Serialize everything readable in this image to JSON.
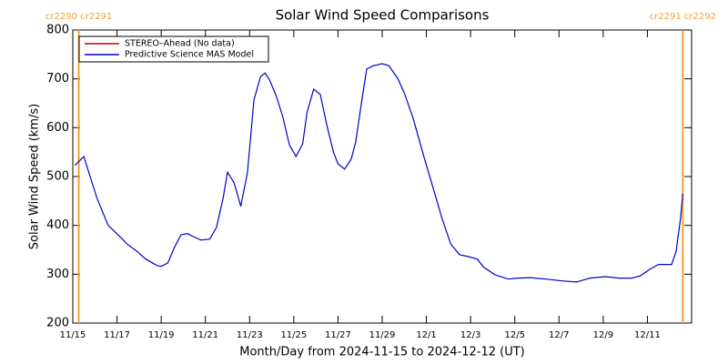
{
  "chart_data": {
    "type": "line",
    "title": "Solar Wind Speed Comparisons",
    "xlabel": "Month/Day from 2024-11-15 to 2024-12-12 (UT)",
    "ylabel": "Solar Wind Speed (km/s)",
    "xlim": [
      0,
      28
    ],
    "ylim": [
      200,
      800
    ],
    "yticks": [
      200,
      300,
      400,
      500,
      600,
      700,
      800
    ],
    "xticks": [
      {
        "value": 0,
        "label": "11/15"
      },
      {
        "value": 2,
        "label": "11/17"
      },
      {
        "value": 4,
        "label": "11/19"
      },
      {
        "value": 6,
        "label": "11/21"
      },
      {
        "value": 8,
        "label": "11/23"
      },
      {
        "value": 10,
        "label": "11/25"
      },
      {
        "value": 12,
        "label": "11/27"
      },
      {
        "value": 14,
        "label": "11/29"
      },
      {
        "value": 16,
        "label": "12/1"
      },
      {
        "value": 18,
        "label": "12/3"
      },
      {
        "value": 20,
        "label": "12/5"
      },
      {
        "value": 22,
        "label": "12/7"
      },
      {
        "value": 24,
        "label": "12/9"
      },
      {
        "value": 26,
        "label": "12/11"
      }
    ],
    "legend": "upper left",
    "annotations": [
      {
        "text": "cr2290 cr2291",
        "x": 0.27,
        "color": "#f5a030"
      },
      {
        "text": "cr2291 cr2292",
        "x": 27.6,
        "color": "#f5a030"
      }
    ],
    "x": [
      0.1,
      0.5,
      1.1,
      1.6,
      2.2,
      2.45,
      2.9,
      3.3,
      3.8,
      4.0,
      4.3,
      4.6,
      4.9,
      5.2,
      5.45,
      5.8,
      6.2,
      6.5,
      6.8,
      7.0,
      7.3,
      7.6,
      7.9,
      8.2,
      8.5,
      8.7,
      8.9,
      9.2,
      9.5,
      9.8,
      10.1,
      10.4,
      10.6,
      10.9,
      11.2,
      11.5,
      11.8,
      12.0,
      12.3,
      12.6,
      12.8,
      13.1,
      13.3,
      13.6,
      14.0,
      14.3,
      14.7,
      15.0,
      15.4,
      15.9,
      16.2,
      16.7,
      17.1,
      17.5,
      17.9,
      18.3,
      18.6,
      19.1,
      19.7,
      20.1,
      20.7,
      21.4,
      22.2,
      22.8,
      23.4,
      24.1,
      24.7,
      25.3,
      25.7,
      26.1,
      26.5,
      27.1,
      27.3,
      27.5,
      27.6
    ],
    "series": [
      {
        "name": "STEREO–Ahead (No data)",
        "color": "#c00000",
        "values": [
          null,
          null,
          null,
          null,
          null,
          null,
          null,
          null,
          null,
          null,
          null,
          null,
          null,
          null,
          null,
          null,
          null,
          null,
          null,
          null,
          null,
          null,
          null,
          null,
          null,
          null,
          null,
          null,
          null,
          null,
          null,
          null,
          null,
          null,
          null,
          null,
          null,
          null,
          null,
          null,
          null,
          null,
          null,
          null,
          null,
          null,
          null,
          null,
          null,
          null,
          null,
          null,
          null,
          null,
          null,
          null,
          null,
          null,
          null,
          null,
          null,
          null,
          null,
          null,
          null,
          null,
          null,
          null,
          null,
          null,
          null,
          null,
          null,
          null,
          null
        ]
      },
      {
        "name": "Predictive Science MAS Model",
        "color": "#0000cc",
        "values": [
          523,
          541,
          455,
          400,
          374,
          362,
          347,
          331,
          318,
          316,
          323,
          355,
          381,
          383,
          377,
          370,
          372,
          396,
          455,
          509,
          487,
          439,
          508,
          657,
          705,
          712,
          698,
          666,
          623,
          565,
          541,
          567,
          631,
          679,
          668,
          604,
          549,
          526,
          515,
          536,
          571,
          662,
          720,
          727,
          731,
          727,
          701,
          671,
          619,
          539,
          493,
          415,
          362,
          340,
          336,
          331,
          314,
          299,
          290,
          292,
          293,
          290,
          286,
          284,
          292,
          295,
          292,
          292,
          297,
          310,
          320,
          320,
          347,
          415,
          465
        ]
      }
    ]
  }
}
